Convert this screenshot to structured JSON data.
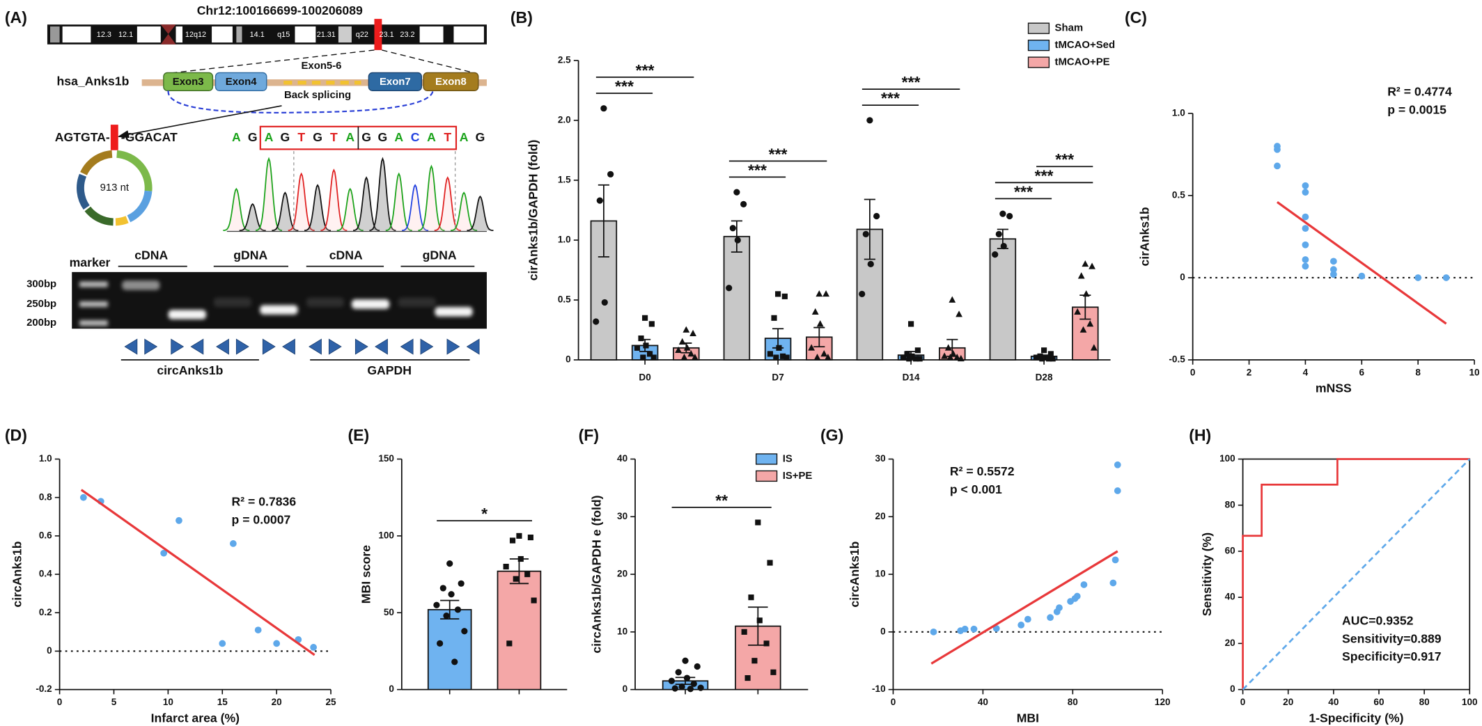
{
  "panel_a": {
    "label": "(A)",
    "chromosome": {
      "title": "Chr12:100166699-100206089",
      "bands": [
        "12.3",
        "12.1",
        "12q12",
        "14.1",
        "q15",
        "21.31",
        "q22",
        "23.1",
        "23.2"
      ]
    },
    "gene": {
      "name": "hsa_Anks1b",
      "exons": [
        "Exon3",
        "Exon4",
        "Exon5-6",
        "Exon7",
        "Exon8"
      ],
      "splicing": "Back splicing"
    },
    "junction": {
      "left": "AGTGTA-",
      "right": "-GGACAT",
      "length": "913 nt"
    },
    "sequence": [
      "A",
      "G",
      "A",
      "G",
      "T",
      "G",
      "T",
      "A",
      "G",
      "G",
      "A",
      "C",
      "A",
      "T",
      "A",
      "G"
    ],
    "gel": {
      "lanes": [
        "marker",
        "cDNA",
        "gDNA",
        "cDNA",
        "gDNA"
      ],
      "sizes": [
        "300bp",
        "250bp",
        "200bp"
      ],
      "targets": [
        "circAnks1b",
        "GAPDH"
      ]
    }
  },
  "chart_data": [
    {
      "panel": "(B)",
      "type": "bar",
      "ylabel": "cirAnks1b/GAPDH (fold)",
      "categories": [
        "D0",
        "D7",
        "D14",
        "D28"
      ],
      "ylim": [
        0,
        2.5
      ],
      "yticks": [
        0,
        0.5,
        {
          "value": 1,
          "label": "1.0"
        },
        1.5,
        {
          "value": 2,
          "label": "2.0"
        },
        2.5
      ],
      "legend": "upper right",
      "series": [
        {
          "name": "Sham",
          "color": "#c8c8c8",
          "marker": "circle",
          "values": [
            1.16,
            1.03,
            1.09,
            1.01
          ],
          "errors": [
            0.3,
            0.13,
            0.25,
            0.08
          ],
          "points": [
            [
              2.1,
              1.55,
              1.33,
              0.48,
              0.32
            ],
            [
              1.4,
              1.3,
              1.1,
              1.0,
              0.6
            ],
            [
              2.0,
              1.2,
              1.05,
              0.8,
              0.55
            ],
            [
              1.22,
              1.2,
              1.05,
              0.95,
              0.88
            ]
          ]
        },
        {
          "name": "tMCAO+Sed",
          "color": "#6fb3f0",
          "marker": "square",
          "values": [
            0.12,
            0.18,
            0.04,
            0.03
          ],
          "errors": [
            0.05,
            0.08,
            0.03,
            0.01
          ],
          "points": [
            [
              0.35,
              0.3,
              0.18,
              0.12,
              0.1,
              0.05,
              0.02,
              0.02
            ],
            [
              0.55,
              0.53,
              0.35,
              0.1,
              0.05,
              0.03,
              0.02,
              0.02
            ],
            [
              0.3,
              0.08,
              0.05,
              0.03,
              0.02,
              0.01,
              0.01,
              0.01
            ],
            [
              0.08,
              0.05,
              0.03,
              0.02,
              0.02,
              0.01,
              0.01,
              0.01
            ]
          ]
        },
        {
          "name": "tMCAO+PE",
          "color": "#f4a7a7",
          "marker": "triangle",
          "values": [
            0.1,
            0.19,
            0.1,
            0.44
          ],
          "errors": [
            0.04,
            0.08,
            0.07,
            0.1
          ],
          "points": [
            [
              0.25,
              0.22,
              0.15,
              0.1,
              0.08,
              0.05,
              0.02,
              0.02
            ],
            [
              0.55,
              0.55,
              0.4,
              0.3,
              0.1,
              0.05,
              0.02,
              0.02
            ],
            [
              0.5,
              0.38,
              0.1,
              0.05,
              0.03,
              0.02,
              0.02,
              0.01
            ],
            [
              0.8,
              0.78,
              0.7,
              0.55,
              0.4,
              0.3,
              0.25,
              0.1
            ]
          ]
        }
      ],
      "annotations": [
        {
          "category": 0,
          "from": 0,
          "to": 1,
          "text": "***"
        },
        {
          "category": 0,
          "from": 0,
          "to": 2,
          "text": "***"
        },
        {
          "category": 1,
          "from": 0,
          "to": 1,
          "text": "***"
        },
        {
          "category": 1,
          "from": 0,
          "to": 2,
          "text": "***"
        },
        {
          "category": 2,
          "from": 0,
          "to": 1,
          "text": "***"
        },
        {
          "category": 2,
          "from": 0,
          "to": 2,
          "text": "***"
        },
        {
          "category": 3,
          "from": 0,
          "to": 1,
          "text": "***"
        },
        {
          "category": 3,
          "from": 0,
          "to": 2,
          "text": "***"
        },
        {
          "category": 3,
          "from": 1,
          "to": 2,
          "text": "***"
        }
      ]
    },
    {
      "panel": "(C)",
      "type": "scatter",
      "xlabel": "mNSS",
      "ylabel": "cirAnks1b",
      "xlim": [
        0,
        10
      ],
      "xticks": [
        0,
        2,
        4,
        6,
        8,
        10
      ],
      "ylim": [
        -0.5,
        1
      ],
      "yticks": [
        -0.5,
        0,
        0.5,
        {
          "value": 1,
          "label": "1.0"
        }
      ],
      "color": "#5ea8ea",
      "x": [
        3,
        3,
        3,
        4,
        4,
        4,
        4,
        4,
        4,
        4,
        5,
        5,
        5,
        6,
        8,
        9
      ],
      "y": [
        0.8,
        0.78,
        0.68,
        0.56,
        0.52,
        0.37,
        0.3,
        0.2,
        0.11,
        0.07,
        0.1,
        0.05,
        0.02,
        0.01,
        0.0,
        0.0
      ],
      "fit": {
        "color": "#e8383a",
        "x": [
          3,
          9
        ],
        "y": [
          0.46,
          -0.28
        ]
      },
      "hline": 0,
      "annotations": [
        "R² = 0.4774",
        "p = 0.0015"
      ]
    },
    {
      "panel": "(D)",
      "type": "scatter",
      "xlabel": "Infarct area (%)",
      "ylabel": "circAnks1b",
      "xlim": [
        0,
        25
      ],
      "xticks": [
        0,
        5,
        10,
        15,
        20,
        25
      ],
      "ylim": [
        -0.2,
        1
      ],
      "yticks": [
        -0.2,
        0,
        0.2,
        0.4,
        0.6,
        0.8,
        {
          "value": 1,
          "label": "1.0"
        }
      ],
      "color": "#5ea8ea",
      "x": [
        2.2,
        3.8,
        9.6,
        11,
        15,
        16,
        18.3,
        20,
        22,
        23.4
      ],
      "y": [
        0.8,
        0.78,
        0.51,
        0.68,
        0.04,
        0.56,
        0.11,
        0.04,
        0.06,
        0.02
      ],
      "fit": {
        "color": "#e8383a",
        "x": [
          2,
          23.5
        ],
        "y": [
          0.84,
          -0.02
        ]
      },
      "hline": 0,
      "annotations": [
        "R² = 0.7836",
        "p = 0.0007"
      ]
    },
    {
      "panel": "(E)",
      "type": "bar",
      "ylabel": "MBI score",
      "categories": [
        null
      ],
      "ylim": [
        0,
        150
      ],
      "yticks": [
        0,
        50,
        100,
        150
      ],
      "series": [
        {
          "color": "#6fb3f0",
          "marker": "circle",
          "values": [
            52
          ],
          "errors": [
            6
          ],
          "points": [
            [
              82,
              69,
              66,
              62,
              55,
              52,
              48,
              38,
              30,
              18
            ]
          ]
        },
        {
          "color": "#f4a7a7",
          "marker": "square",
          "values": [
            77
          ],
          "errors": [
            8
          ],
          "points": [
            [
              100,
              99,
              97,
              85,
              80,
              75,
              72,
              58,
              30
            ]
          ]
        }
      ],
      "annotations": [
        {
          "category": 0,
          "from": 0,
          "to": 1,
          "text": "*"
        }
      ]
    },
    {
      "panel": "(F)",
      "type": "bar",
      "ylabel": "circAnks1b/GAPDH e (fold)",
      "categories": [
        null
      ],
      "ylim": [
        0,
        40
      ],
      "yticks": [
        0,
        10,
        20,
        30,
        40
      ],
      "legend": "upper right",
      "series": [
        {
          "name": "IS",
          "color": "#6fb3f0",
          "marker": "circle",
          "values": [
            1.5
          ],
          "errors": [
            0.6
          ],
          "points": [
            [
              5,
              4,
              3,
              2,
              1.5,
              1,
              0.5,
              0.3,
              0.2,
              0.1
            ]
          ]
        },
        {
          "name": "IS+PE",
          "color": "#f4a7a7",
          "marker": "square",
          "values": [
            11
          ],
          "errors": [
            3.3
          ],
          "points": [
            [
              29,
              22,
              16,
              12,
              10,
              8,
              5,
              3,
              2
            ]
          ]
        }
      ],
      "annotations": [
        {
          "category": 0,
          "from": 0,
          "to": 1,
          "text": "**"
        }
      ]
    },
    {
      "panel": "(G)",
      "type": "scatter",
      "xlabel": "MBI",
      "ylabel": "circAnks1b",
      "xlim": [
        0,
        120
      ],
      "xticks": [
        0,
        40,
        80,
        120
      ],
      "ylim": [
        -10,
        30
      ],
      "yticks": [
        -10,
        0,
        10,
        20,
        30
      ],
      "color": "#5ea8ea",
      "x": [
        18,
        30,
        32,
        36,
        46,
        57,
        60,
        70,
        73,
        74,
        79,
        81,
        82,
        85,
        98,
        99,
        100,
        100
      ],
      "y": [
        0,
        0.2,
        0.5,
        0.5,
        0.6,
        1.2,
        2.2,
        2.5,
        3.5,
        4.2,
        5.3,
        5.8,
        6.2,
        8.2,
        8.5,
        12.5,
        24.5,
        29
      ],
      "fit": {
        "color": "#e8383a",
        "x": [
          17,
          100
        ],
        "y": [
          -5.5,
          14
        ]
      },
      "hline": 0,
      "annotations": [
        "R² = 0.5572",
        "p < 0.001"
      ]
    },
    {
      "panel": "(H)",
      "type": "line",
      "xlabel": "1-Specificity (%)",
      "ylabel": "Sensitivity (%)",
      "xlim": [
        0,
        100
      ],
      "xticks": [
        0,
        20,
        40,
        60,
        80,
        100
      ],
      "ylim": [
        0,
        100
      ],
      "yticks": [
        0,
        20,
        40,
        60,
        80,
        100
      ],
      "series": [
        {
          "color": "#e8383a",
          "dashed": false,
          "x": [
            0,
            0,
            8.3,
            8.3,
            41.7,
            41.7,
            100
          ],
          "y": [
            0,
            66.7,
            66.7,
            88.9,
            88.9,
            100,
            100
          ]
        },
        {
          "color": "#5ea8ea",
          "dashed": true,
          "x": [
            0,
            100
          ],
          "y": [
            0,
            100
          ]
        }
      ],
      "annotations": [
        "AUC=0.9352",
        "Sensitivity=0.889",
        "Specificity=0.917"
      ]
    }
  ]
}
